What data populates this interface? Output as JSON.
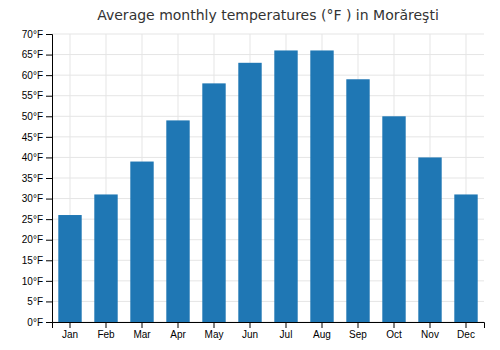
{
  "chart_data": {
    "type": "bar",
    "title": "Average monthly temperatures (°F ) in Morăreşti",
    "categories": [
      "Jan",
      "Feb",
      "Mar",
      "Apr",
      "May",
      "Jun",
      "Jul",
      "Aug",
      "Sep",
      "Oct",
      "Nov",
      "Dec"
    ],
    "values": [
      26,
      31,
      39,
      49,
      58,
      63,
      66,
      66,
      59,
      50,
      40,
      31
    ],
    "ylim": [
      0,
      70
    ],
    "yticks": [
      {
        "value": 0,
        "label": "0°F"
      },
      {
        "value": 5,
        "label": "5°F"
      },
      {
        "value": 10,
        "label": "10°F"
      },
      {
        "value": 15,
        "label": "15°F"
      },
      {
        "value": 20,
        "label": "20°F"
      },
      {
        "value": 25,
        "label": "25°F"
      },
      {
        "value": 30,
        "label": "30°F"
      },
      {
        "value": 35,
        "label": "35°F"
      },
      {
        "value": 40,
        "label": "40°F"
      },
      {
        "value": 45,
        "label": "45°F"
      },
      {
        "value": 50,
        "label": "50°F"
      },
      {
        "value": 55,
        "label": "55°F"
      },
      {
        "value": 60,
        "label": "60°F"
      },
      {
        "value": 65,
        "label": "65°F"
      },
      {
        "value": 70,
        "label": "70°F"
      }
    ],
    "grid": true
  }
}
